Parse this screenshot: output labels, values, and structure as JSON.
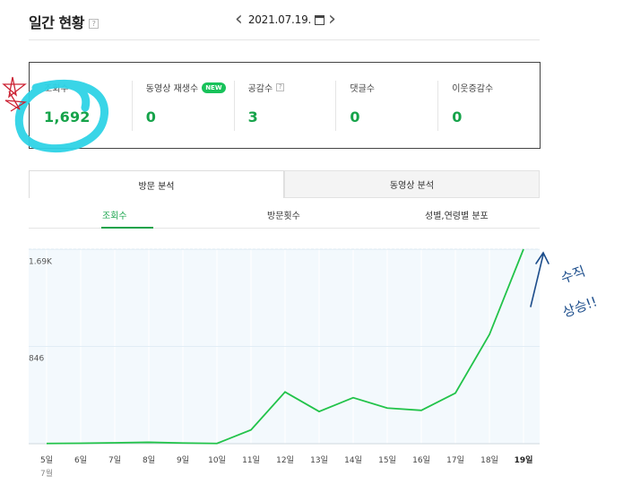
{
  "header": {
    "title": "일간 현황",
    "help": "?",
    "date": "2021.07.19."
  },
  "stats": [
    {
      "label": "조회수",
      "value": "1,692"
    },
    {
      "label": "동영상 재생수",
      "badge": "NEW",
      "value": "0"
    },
    {
      "label": "공감수",
      "help": "?",
      "value": "3"
    },
    {
      "label": "댓글수",
      "value": "0"
    },
    {
      "label": "이웃증감수",
      "value": "0"
    }
  ],
  "tabs": {
    "visit_analysis": "방문 분석",
    "video_analysis": "동영상 분석"
  },
  "subtabs": {
    "views": "조회수",
    "visits": "방문횟수",
    "gender_age": "성별,연령별 분포"
  },
  "annotation": {
    "text_line1": "수직",
    "text_line2": "상승!!"
  },
  "colors": {
    "accent": "#16a34a",
    "line": "#22c34a",
    "chart_bg": "#f3f9fd",
    "scribble_cyan": "#2ed3e6",
    "scribble_red": "#cc2233",
    "scribble_blue": "#1d4e8c"
  },
  "chart_data": {
    "type": "line",
    "categories": [
      "5일",
      "6일",
      "7일",
      "8일",
      "9일",
      "10일",
      "11일",
      "12일",
      "13일",
      "14일",
      "15일",
      "16일",
      "17일",
      "18일",
      "19일"
    ],
    "x_sublabel": "7월",
    "values": [
      2,
      4,
      8,
      12,
      6,
      2,
      120,
      450,
      280,
      400,
      310,
      290,
      440,
      950,
      1692
    ],
    "y_ticks": [
      {
        "value": 846,
        "label": "846"
      },
      {
        "value": 1690,
        "label": "1.69K"
      }
    ],
    "ylim": [
      0,
      1692
    ],
    "grid": true
  }
}
